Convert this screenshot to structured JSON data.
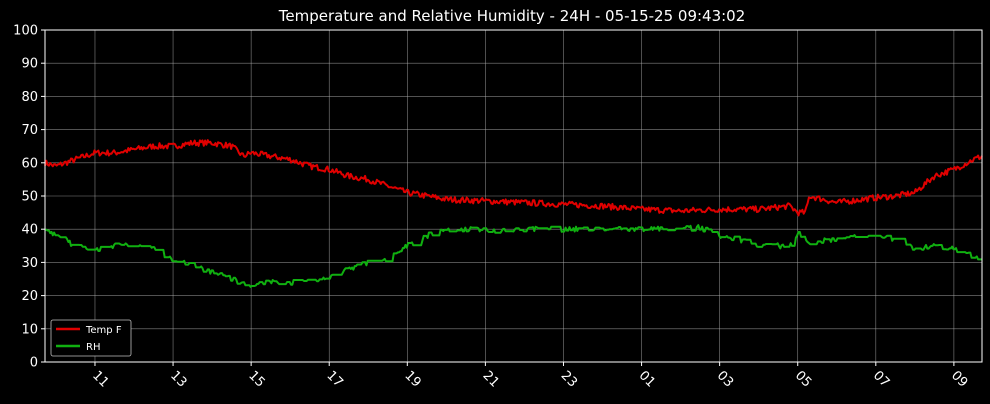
{
  "chart_data": {
    "type": "line",
    "title": "Temperature and Relative Humidity - 24H - 05-15-25 09:43:02",
    "xlabel": "",
    "ylabel": "",
    "ylim": [
      0,
      100
    ],
    "y_ticks": [
      0,
      10,
      20,
      30,
      40,
      50,
      60,
      70,
      80,
      90,
      100
    ],
    "x_range_hours": [
      9.72,
      33.72
    ],
    "x_ticks": [
      {
        "label": "11",
        "hour": 11
      },
      {
        "label": "13",
        "hour": 13
      },
      {
        "label": "15",
        "hour": 15
      },
      {
        "label": "17",
        "hour": 17
      },
      {
        "label": "19",
        "hour": 19
      },
      {
        "label": "21",
        "hour": 21
      },
      {
        "label": "23",
        "hour": 23
      },
      {
        "label": "01",
        "hour": 25
      },
      {
        "label": "03",
        "hour": 27
      },
      {
        "label": "05",
        "hour": 29
      },
      {
        "label": "07",
        "hour": 31
      },
      {
        "label": "09",
        "hour": 33
      }
    ],
    "grid": true,
    "legend": "lower-left",
    "series": [
      {
        "name": "Temp F",
        "color": "#e00000",
        "points": [
          [
            9.72,
            60
          ],
          [
            10.0,
            59
          ],
          [
            10.5,
            61
          ],
          [
            11.0,
            63
          ],
          [
            11.5,
            63
          ],
          [
            12.0,
            64
          ],
          [
            12.5,
            65
          ],
          [
            13.0,
            65
          ],
          [
            13.5,
            66
          ],
          [
            14.0,
            66
          ],
          [
            14.5,
            65
          ],
          [
            14.8,
            62
          ],
          [
            15.0,
            63
          ],
          [
            15.5,
            62
          ],
          [
            16.0,
            61
          ],
          [
            16.5,
            59
          ],
          [
            17.0,
            58
          ],
          [
            17.5,
            56
          ],
          [
            18.0,
            55
          ],
          [
            18.5,
            53
          ],
          [
            19.0,
            51
          ],
          [
            19.5,
            50
          ],
          [
            20.0,
            49
          ],
          [
            21.0,
            48.5
          ],
          [
            22.0,
            48
          ],
          [
            23.0,
            47.5
          ],
          [
            24.0,
            47
          ],
          [
            25.0,
            46
          ],
          [
            26.0,
            45.5
          ],
          [
            27.0,
            46
          ],
          [
            28.0,
            46
          ],
          [
            28.8,
            47
          ],
          [
            29.0,
            45
          ],
          [
            29.2,
            45
          ],
          [
            29.3,
            50
          ],
          [
            30.0,
            48
          ],
          [
            31.0,
            49.5
          ],
          [
            31.5,
            50
          ],
          [
            32.0,
            51
          ],
          [
            32.5,
            56
          ],
          [
            33.0,
            58
          ],
          [
            33.5,
            61
          ],
          [
            33.72,
            62
          ]
        ]
      },
      {
        "name": "RH",
        "color": "#10b010",
        "points": [
          [
            9.72,
            40
          ],
          [
            10.0,
            38
          ],
          [
            10.5,
            35
          ],
          [
            11.0,
            34
          ],
          [
            11.5,
            35
          ],
          [
            12.0,
            35
          ],
          [
            12.5,
            34
          ],
          [
            13.0,
            31
          ],
          [
            13.5,
            29
          ],
          [
            14.0,
            27
          ],
          [
            14.5,
            25
          ],
          [
            15.0,
            23
          ],
          [
            15.5,
            24
          ],
          [
            16.0,
            24
          ],
          [
            16.5,
            24
          ],
          [
            17.0,
            26
          ],
          [
            17.5,
            28
          ],
          [
            18.0,
            30
          ],
          [
            18.5,
            31
          ],
          [
            19.0,
            35
          ],
          [
            19.5,
            38
          ],
          [
            20.0,
            40
          ],
          [
            20.5,
            40
          ],
          [
            21.0,
            39.5
          ],
          [
            22.0,
            40
          ],
          [
            23.0,
            40
          ],
          [
            24.0,
            40
          ],
          [
            25.0,
            40
          ],
          [
            26.0,
            40
          ],
          [
            26.5,
            40.5
          ],
          [
            27.0,
            38
          ],
          [
            27.5,
            37
          ],
          [
            28.0,
            35
          ],
          [
            28.5,
            35
          ],
          [
            28.9,
            35
          ],
          [
            29.0,
            39
          ],
          [
            29.3,
            36
          ],
          [
            30.0,
            37
          ],
          [
            31.0,
            38
          ],
          [
            31.5,
            37
          ],
          [
            32.0,
            34
          ],
          [
            32.5,
            35
          ],
          [
            33.0,
            34
          ],
          [
            33.5,
            32
          ],
          [
            33.72,
            31
          ]
        ]
      }
    ]
  }
}
